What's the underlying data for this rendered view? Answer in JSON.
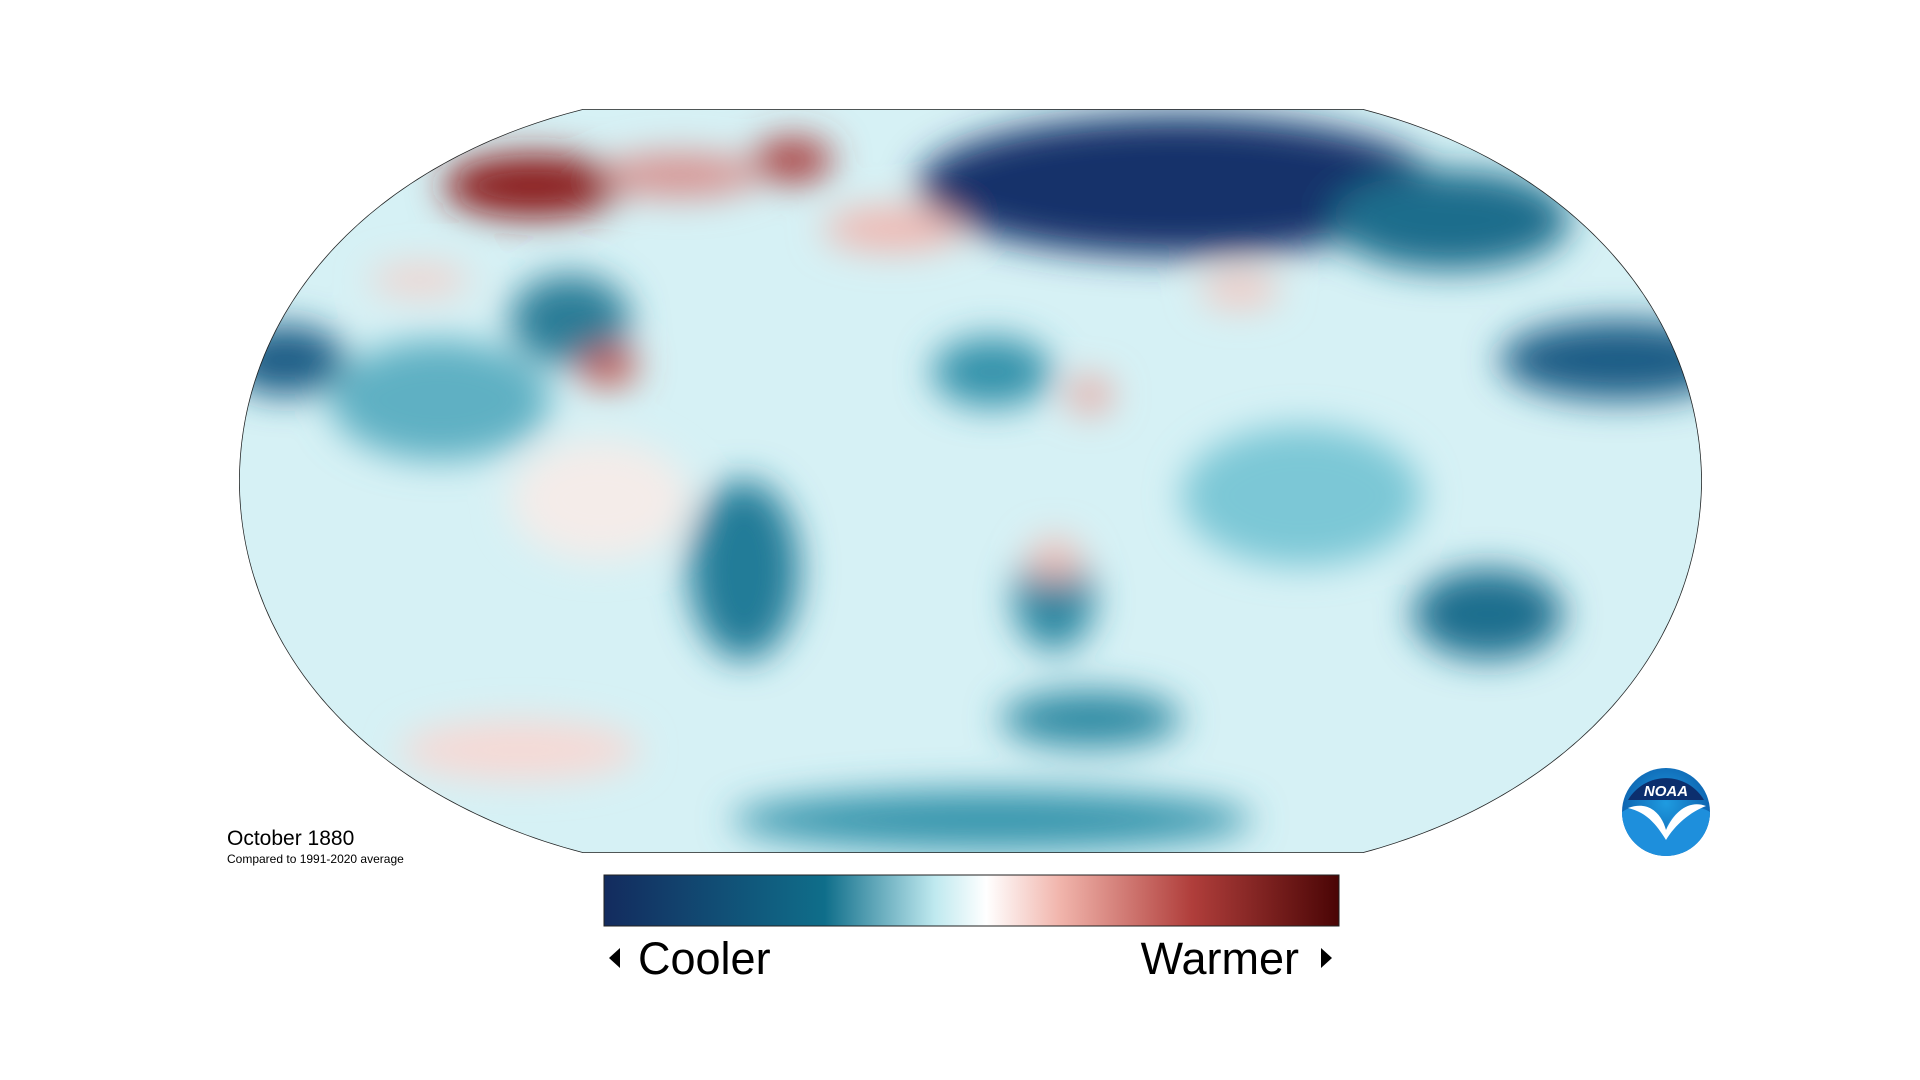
{
  "map": {
    "title": "October 1880",
    "subtitle": "Compared to 1991-2020 average"
  },
  "legend": {
    "low_label": "Cooler",
    "high_label": "Warmer"
  },
  "logo": {
    "text": "NOAA"
  }
}
